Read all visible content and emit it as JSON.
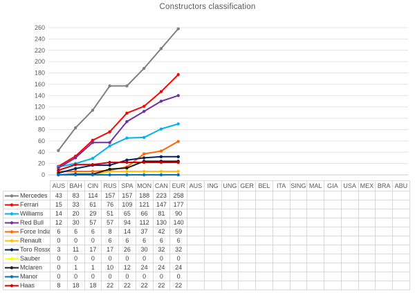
{
  "chart_data": {
    "type": "line",
    "title": "Constructors classification",
    "categories": [
      "AUS",
      "BAH",
      "CIN",
      "RUS",
      "SPA",
      "MON",
      "CAN",
      "EUR",
      "AUS",
      "ING",
      "UNG",
      "GER",
      "BEL",
      "ITA",
      "SING",
      "MAL",
      "GIA",
      "USA",
      "MEX",
      "BRA",
      "ABU"
    ],
    "series": [
      {
        "name": "Mercedes",
        "color": "#808080",
        "values": [
          43,
          83,
          114,
          157,
          157,
          188,
          223,
          258
        ]
      },
      {
        "name": "Ferrari",
        "color": "#ff0000",
        "values": [
          15,
          33,
          61,
          76,
          109,
          121,
          147,
          177
        ]
      },
      {
        "name": "Williams",
        "color": "#00b0f0",
        "values": [
          14,
          20,
          29,
          51,
          65,
          66,
          81,
          90
        ]
      },
      {
        "name": "Red Bull",
        "color": "#7030a0",
        "values": [
          12,
          30,
          57,
          57,
          94,
          112,
          130,
          140
        ]
      },
      {
        "name": "Force India",
        "color": "#ff6600",
        "values": [
          6,
          6,
          6,
          8,
          14,
          37,
          42,
          59
        ]
      },
      {
        "name": "Renault",
        "color": "#ffc000",
        "values": [
          0,
          0,
          0,
          6,
          6,
          6,
          6,
          6
        ]
      },
      {
        "name": "Toro Rosso",
        "color": "#002060",
        "values": [
          3,
          11,
          17,
          17,
          26,
          30,
          32,
          32
        ]
      },
      {
        "name": "Sauber",
        "color": "#ffff00",
        "values": [
          0,
          0,
          0,
          0,
          0,
          0,
          0,
          0
        ]
      },
      {
        "name": "Mclaren",
        "color": "#1a1a1a",
        "values": [
          0,
          1,
          1,
          10,
          12,
          24,
          24,
          24
        ]
      },
      {
        "name": "Manor",
        "color": "#0070c0",
        "values": [
          0,
          0,
          0,
          0,
          0,
          0,
          0,
          0
        ]
      },
      {
        "name": "Haas",
        "color": "#cc0000",
        "values": [
          8,
          18,
          18,
          22,
          22,
          22,
          22,
          22
        ]
      }
    ],
    "ylim": [
      0,
      260
    ],
    "ytick_step": 20,
    "grid": true,
    "legend_position": "table-left",
    "colors": {
      "grid_line": "#e3e3e3",
      "axis_line": "#c9c9c9",
      "table_border": "#d9d9d9",
      "text": "#595959"
    }
  }
}
